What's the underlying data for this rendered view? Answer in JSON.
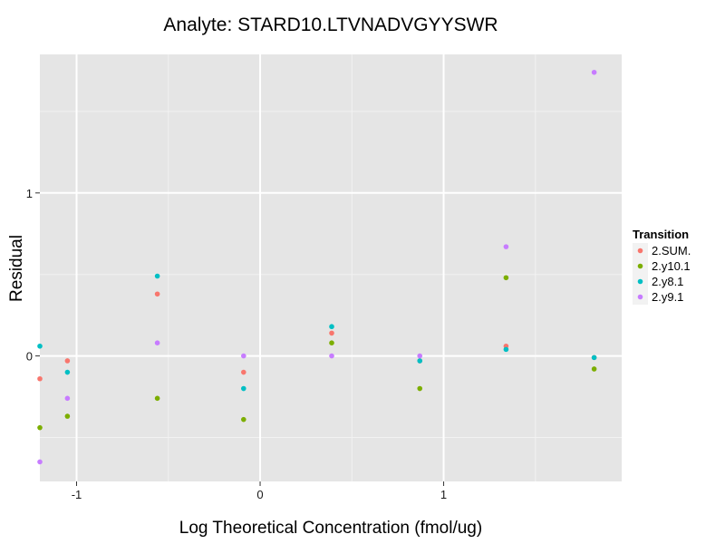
{
  "chart_data": {
    "type": "scatter",
    "title": "Analyte: STARD10.LTVNADVGYYSWR",
    "xlabel": "Log Theoretical Concentration (fmol/ug)",
    "ylabel": "Residual",
    "xlim": [
      -1.2,
      1.97
    ],
    "ylim": [
      -0.77,
      1.85
    ],
    "x_ticks": [
      -1,
      0,
      1
    ],
    "x_tick_labels": [
      "-1",
      "0",
      "1"
    ],
    "y_ticks": [
      0,
      1
    ],
    "y_tick_labels": [
      "0",
      "1"
    ],
    "grid": true,
    "legend": {
      "title": "Transition",
      "position": "right"
    },
    "series": [
      {
        "name": "2.SUM.",
        "color": "#F8766D",
        "points": [
          {
            "x": -1.2,
            "y": -0.14
          },
          {
            "x": -1.05,
            "y": -0.03
          },
          {
            "x": -0.56,
            "y": 0.38
          },
          {
            "x": -0.09,
            "y": -0.1
          },
          {
            "x": 0.39,
            "y": 0.14
          },
          {
            "x": 0.87,
            "y": -0.03
          },
          {
            "x": 1.34,
            "y": 0.06
          },
          {
            "x": 1.82,
            "y": -0.01
          }
        ]
      },
      {
        "name": "2.y10.1",
        "color": "#7CAE00",
        "points": [
          {
            "x": -1.2,
            "y": -0.44
          },
          {
            "x": -1.05,
            "y": -0.37
          },
          {
            "x": -0.56,
            "y": -0.26
          },
          {
            "x": -0.09,
            "y": -0.39
          },
          {
            "x": 0.39,
            "y": 0.08
          },
          {
            "x": 0.87,
            "y": -0.2
          },
          {
            "x": 1.34,
            "y": 0.48
          },
          {
            "x": 1.82,
            "y": -0.08
          }
        ]
      },
      {
        "name": "2.y8.1",
        "color": "#00BFC4",
        "points": [
          {
            "x": -1.2,
            "y": 0.06
          },
          {
            "x": -1.05,
            "y": -0.1
          },
          {
            "x": -0.56,
            "y": 0.49
          },
          {
            "x": -0.09,
            "y": -0.2
          },
          {
            "x": 0.39,
            "y": 0.18
          },
          {
            "x": 0.87,
            "y": -0.03
          },
          {
            "x": 1.34,
            "y": 0.04
          },
          {
            "x": 1.82,
            "y": -0.01
          }
        ]
      },
      {
        "name": "2.y9.1",
        "color": "#C77CFF",
        "points": [
          {
            "x": -1.2,
            "y": -0.65
          },
          {
            "x": -1.05,
            "y": -0.26
          },
          {
            "x": -0.56,
            "y": 0.08
          },
          {
            "x": -0.09,
            "y": 0.0
          },
          {
            "x": 0.39,
            "y": 0.0
          },
          {
            "x": 0.87,
            "y": 0.0
          },
          {
            "x": 1.34,
            "y": 0.67
          },
          {
            "x": 1.82,
            "y": 1.74
          }
        ]
      }
    ]
  }
}
